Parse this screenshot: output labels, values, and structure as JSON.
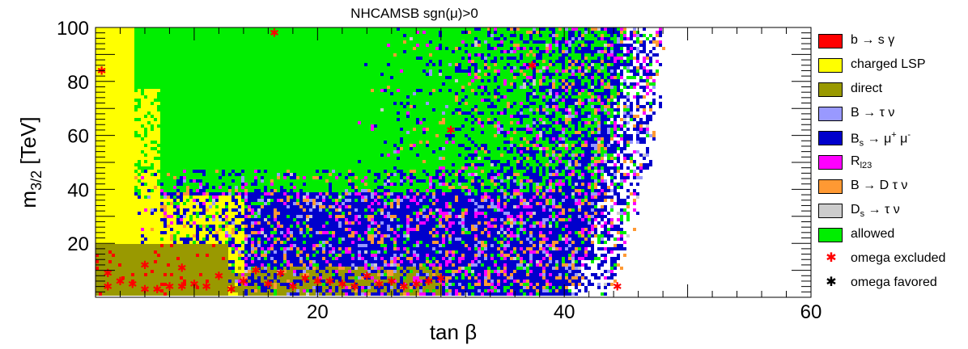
{
  "chart_data": {
    "type": "scatter",
    "title": "NHCAMSB    sgn(μ)>0",
    "xlabel": "tan β",
    "ylabel": "m3/2 [TeV]",
    "xlim": [
      2,
      60
    ],
    "ylim": [
      0,
      100
    ],
    "x_ticks": [
      20,
      40,
      60
    ],
    "y_ticks": [
      20,
      40,
      60,
      80,
      100
    ],
    "grid": false,
    "legend_position": "right",
    "series": [
      {
        "name": "b → s γ",
        "color": "#ff0000",
        "kind": "region"
      },
      {
        "name": "charged LSP",
        "color": "#ffff00",
        "kind": "region"
      },
      {
        "name": "direct",
        "color": "#999900",
        "kind": "region"
      },
      {
        "name": "B → τ ν",
        "color": "#9999ff",
        "kind": "region"
      },
      {
        "name": "Bs → μ+ μ-",
        "color": "#0000cc",
        "kind": "region"
      },
      {
        "name": "Rl23",
        "color": "#ff00ff",
        "kind": "region"
      },
      {
        "name": "B → D τ ν",
        "color": "#ff9933",
        "kind": "region"
      },
      {
        "name": "Ds → τ ν",
        "color": "#cccccc",
        "kind": "region"
      },
      {
        "name": "allowed",
        "color": "#00ee00",
        "kind": "region"
      },
      {
        "name": "omega excluded",
        "color": "#ff0000",
        "kind": "marker",
        "points": [
          [
            2.5,
            84
          ],
          [
            16.5,
            98
          ],
          [
            30.8,
            62
          ],
          [
            37.4,
            86
          ],
          [
            44.3,
            4
          ],
          [
            4,
            6
          ],
          [
            6,
            3
          ],
          [
            8,
            4
          ],
          [
            10,
            5
          ],
          [
            12,
            8
          ],
          [
            14,
            6
          ],
          [
            16,
            5
          ],
          [
            18,
            4
          ],
          [
            20,
            6
          ],
          [
            22,
            5
          ],
          [
            24,
            8
          ],
          [
            26,
            6
          ],
          [
            28,
            5
          ],
          [
            30,
            7
          ],
          [
            3,
            4
          ],
          [
            5,
            5
          ],
          [
            7,
            3
          ],
          [
            9,
            4
          ],
          [
            11,
            4
          ],
          [
            13,
            3
          ],
          [
            15,
            10
          ],
          [
            17,
            9
          ],
          [
            19,
            7
          ],
          [
            21,
            6
          ],
          [
            23,
            4
          ],
          [
            25,
            5
          ],
          [
            27,
            4
          ],
          [
            29,
            6
          ],
          [
            6,
            12
          ],
          [
            9,
            11
          ],
          [
            3,
            9
          ]
        ]
      },
      {
        "name": "omega favored",
        "color": "#000000",
        "kind": "marker",
        "points": []
      }
    ]
  }
}
